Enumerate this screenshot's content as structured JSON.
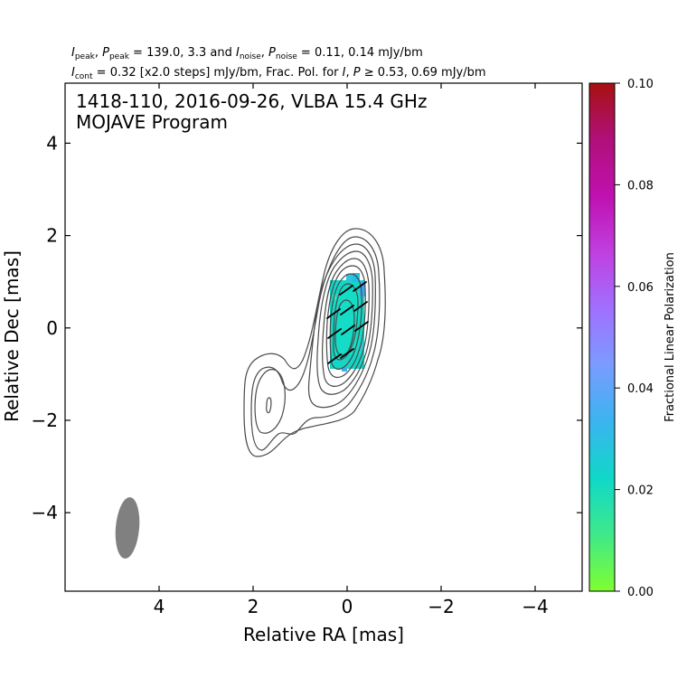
{
  "header": {
    "line1": {
      "I_peak_sym": "I",
      "I_peak_sub": "peak",
      "P_peak_sym": "P",
      "P_peak_sub": "peak",
      "mid1": " = 139.0, 3.3 and ",
      "I_noise_sym": "I",
      "I_noise_sub": "noise",
      "P_noise_sym": "P",
      "P_noise_sub": "noise",
      "tail1": " = 0.11, 0.14 mJy/bm"
    },
    "line2": {
      "I_cont_sym": "I",
      "I_cont_sub": "cont",
      "mid2": " = 0.32 [x2.0 steps] mJy/bm, Frac. Pol. for ",
      "I_sym": "I",
      "P_sym": "P",
      "tail2": " ≥  0.53, 0.69 mJy/bm"
    }
  },
  "plot_title": {
    "line1": "1418-110, 2016-09-26, VLBA 15.4 GHz",
    "line2": "MOJAVE Program"
  },
  "colors": {
    "contour": "#4a4a4a",
    "beam": "#808080",
    "evpa": "#000000",
    "colormap": [
      "#7fff30",
      "#3fe88a",
      "#10d8c8",
      "#3ab4f0",
      "#7a9cff",
      "#a070ff",
      "#c040e0",
      "#c010b0",
      "#b0107a",
      "#a81010"
    ]
  },
  "chart_data": {
    "type": "heatmap",
    "xlabel": "Relative RA [mas]",
    "ylabel": "Relative Dec [mas]",
    "xlim": [
      6.0,
      -5.0
    ],
    "ylim": [
      -5.7,
      5.3
    ],
    "x_ticks": [
      4,
      2,
      0,
      -2,
      -4
    ],
    "y_ticks": [
      -4,
      -2,
      0,
      2,
      4
    ],
    "x_tick_labels": [
      "4",
      "2",
      "0",
      "−2",
      "−4"
    ],
    "y_tick_labels": [
      "−4",
      "−2",
      "0",
      "2",
      "4"
    ],
    "core": {
      "ra": 0.0,
      "dec": 0.0
    },
    "contour_levels_mjy": [
      0.32,
      0.64,
      1.28,
      2.56,
      5.12,
      10.24,
      20.48,
      40.96,
      81.92
    ],
    "beam": {
      "ra": 4.65,
      "dec": -4.35,
      "major_mas": 1.3,
      "minor_mas": 0.52,
      "pa_deg": 5
    },
    "frac_pol_pixels": [
      {
        "ra": 0.05,
        "dec": 0.0,
        "value": 0.023
      },
      {
        "ra": -0.15,
        "dec": 0.8,
        "value": 0.038
      },
      {
        "ra": 0.1,
        "dec": -0.8,
        "value": 0.025
      }
    ],
    "evpa_vectors": [
      {
        "ra": 0.25,
        "dec": 0.25
      },
      {
        "ra": -0.05,
        "dec": 0.3
      },
      {
        "ra": -0.3,
        "dec": 0.35
      },
      {
        "ra": 0.3,
        "dec": -0.3
      },
      {
        "ra": 0.0,
        "dec": -0.25
      },
      {
        "ra": -0.3,
        "dec": -0.2
      },
      {
        "ra": 0.3,
        "dec": -0.8
      },
      {
        "ra": 0.05,
        "dec": -0.75
      },
      {
        "ra": 0.1,
        "dec": 0.75
      },
      {
        "ra": -0.2,
        "dec": 0.8
      }
    ],
    "colorbar": {
      "label": "Fractional Linear Polarization",
      "range": [
        0.0,
        0.1
      ],
      "ticks": [
        0.0,
        0.02,
        0.04,
        0.06,
        0.08,
        0.1
      ],
      "tick_labels": [
        "0.00",
        "0.02",
        "0.04",
        "0.06",
        "0.08",
        "0.10"
      ]
    }
  }
}
